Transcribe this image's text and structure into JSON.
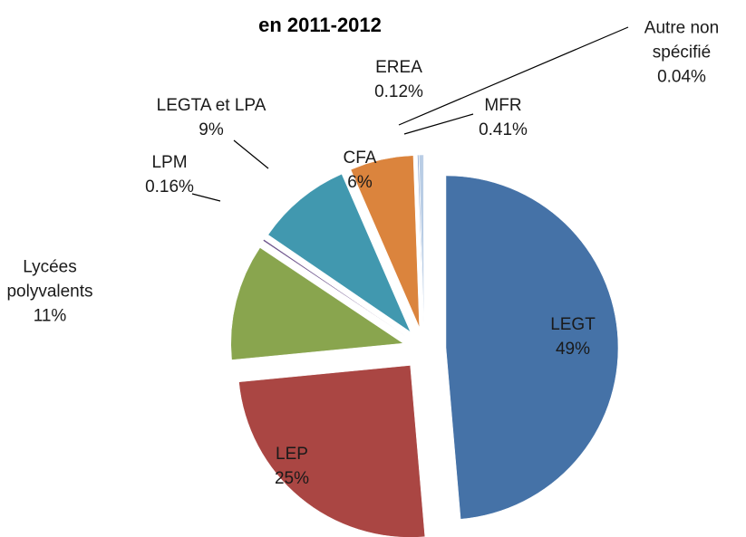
{
  "chart_data": {
    "type": "pie",
    "title": "en 2011-2012",
    "categories": [
      "LEGT",
      "LEP",
      "Lycées polyvalents",
      "LPM",
      "LEGTA et LPA",
      "CFA",
      "EREA",
      "MFR",
      "Autre non spécifié"
    ],
    "values": [
      49,
      25,
      11,
      0.16,
      9,
      6,
      0.12,
      0.41,
      0.04
    ],
    "value_labels": [
      "49%",
      "25%",
      "11%",
      "0.16%",
      "9%",
      "6%",
      "0.12%",
      "0.41%",
      "0.04%"
    ],
    "colors": [
      "#4572a7",
      "#aa4643",
      "#89a54e",
      "#71588f",
      "#4198af",
      "#db843d",
      "#93a9cf",
      "#b9cde5",
      "#a9b9d6"
    ]
  }
}
